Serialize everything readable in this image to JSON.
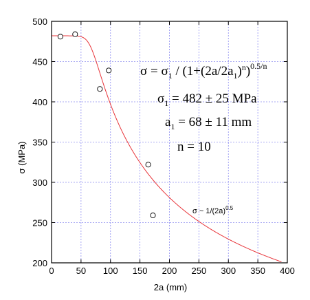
{
  "chart_data": {
    "type": "scatter",
    "xlabel": "2a (mm)",
    "ylabel": "σ (MPa)",
    "xlim": [
      0,
      400
    ],
    "ylim": [
      200,
      500
    ],
    "xticks": [
      0,
      50,
      100,
      150,
      200,
      250,
      300,
      350,
      400
    ],
    "yticks": [
      200,
      250,
      300,
      350,
      400,
      450,
      500
    ],
    "grid": true,
    "colors": {
      "fit": "#e8353a",
      "points": "#000000",
      "grid": "#8c8cf0"
    },
    "points": [
      {
        "x": 15,
        "y": 481
      },
      {
        "x": 40,
        "y": 484
      },
      {
        "x": 82,
        "y": 416
      },
      {
        "x": 97,
        "y": 439
      },
      {
        "x": 164,
        "y": 322
      },
      {
        "x": 172,
        "y": 259
      }
    ],
    "fit": {
      "sigma1": 482,
      "a1": 68,
      "n": 10,
      "x_from": 0,
      "x_to": 390
    },
    "annotations": {
      "formula": {
        "a": "σ = σ",
        "sub1": "1",
        "b": " / (1+(2a/2a",
        "sub2": "1",
        "c": ")",
        "sup_n": "n",
        "d": ")",
        "sup_exp": "0.5/n"
      },
      "sigma1": {
        "a": "σ",
        "sub": "1",
        "b": " = 482 ± 25 MPa"
      },
      "a1": {
        "a": "a",
        "sub": "1",
        "b": " = 68 ± 11 mm"
      },
      "n": "n = 10",
      "asymptote": {
        "a": "σ ~ 1/(2a)",
        "sup": "0.5"
      }
    }
  }
}
